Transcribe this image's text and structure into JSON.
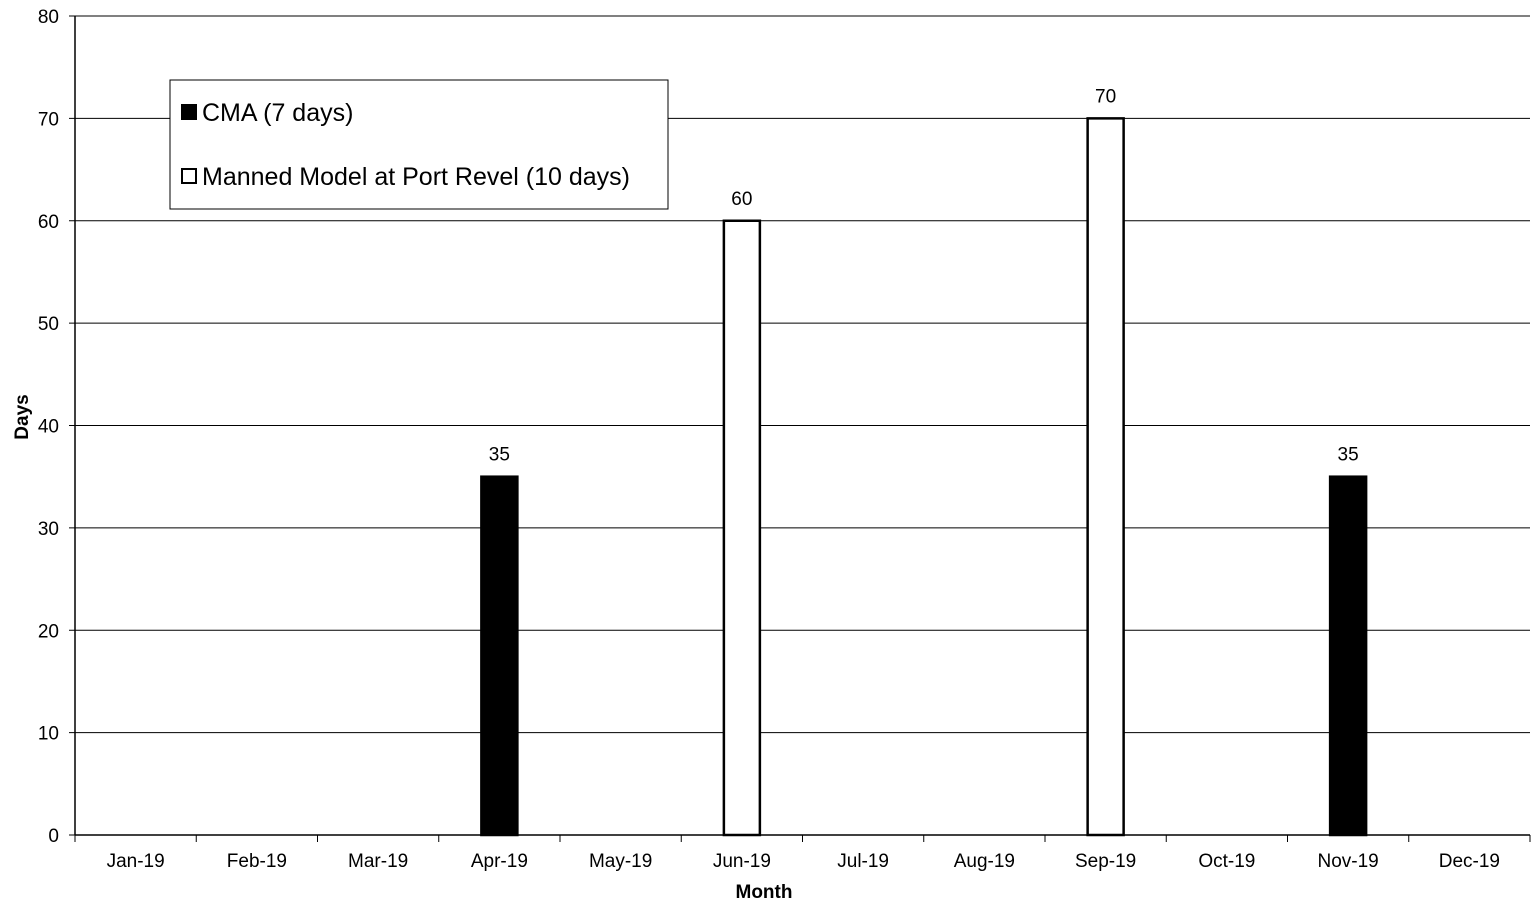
{
  "chart_data": {
    "type": "bar",
    "xlabel": "Month",
    "ylabel": "Days",
    "ylim": [
      0,
      80
    ],
    "ytick_step": 10,
    "grid": true,
    "legend_position": "top-left",
    "categories": [
      "Jan-19",
      "Feb-19",
      "Mar-19",
      "Apr-19",
      "May-19",
      "Jun-19",
      "Jul-19",
      "Aug-19",
      "Sep-19",
      "Oct-19",
      "Nov-19",
      "Dec-19"
    ],
    "series": [
      {
        "name": "CMA (7 days)",
        "fill": "#000000",
        "values": [
          null,
          null,
          null,
          35,
          null,
          null,
          null,
          null,
          null,
          null,
          35,
          null
        ]
      },
      {
        "name": "Manned Model at Port Revel (10 days)",
        "fill": "#ffffff",
        "values": [
          null,
          null,
          null,
          null,
          null,
          60,
          null,
          null,
          70,
          null,
          null,
          null
        ]
      }
    ]
  }
}
